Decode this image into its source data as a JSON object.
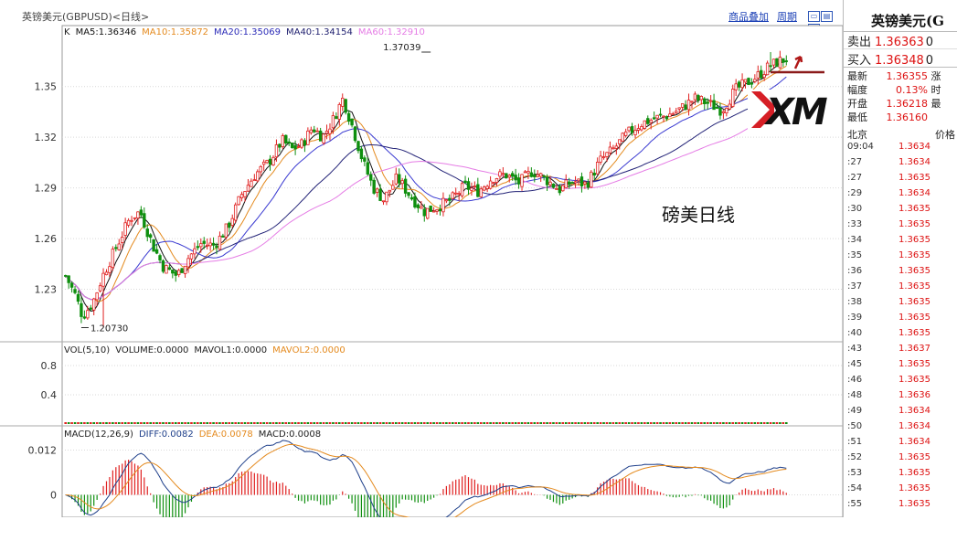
{
  "window": {
    "title": "英镑美元(GBPUSD)<日线>",
    "links": [
      "商品叠加",
      "周期"
    ]
  },
  "chart_data": [
    {
      "type": "candlestick",
      "title": "磅美日线",
      "ylim": [
        1.2,
        1.385
      ],
      "yticks": [
        1.23,
        1.26,
        1.29,
        1.32,
        1.35
      ],
      "indicator_line": {
        "prefix": "K",
        "items": [
          {
            "name": "MA5:1.36346",
            "color": "#111111"
          },
          {
            "name": "MA10:1.35872",
            "color": "#e48a1e"
          },
          {
            "name": "MA20:1.35069",
            "color": "#2c2cb8"
          },
          {
            "name": "MA40:1.34154",
            "color": "#1e1e6e"
          },
          {
            "name": "MA60:1.32910",
            "color": "#e57ce5"
          }
        ]
      },
      "annotations": [
        {
          "text": "1.37039",
          "x": 215,
          "y": 1.37039
        },
        {
          "text": "1.20730",
          "x": 10,
          "y": 1.2073
        }
      ],
      "anchors": [
        [
          0,
          1.238
        ],
        [
          6,
          1.226
        ],
        [
          10,
          1.214
        ],
        [
          16,
          1.222
        ],
        [
          22,
          1.238
        ],
        [
          30,
          1.255
        ],
        [
          38,
          1.272
        ],
        [
          44,
          1.276
        ],
        [
          52,
          1.255
        ],
        [
          58,
          1.243
        ],
        [
          66,
          1.238
        ],
        [
          72,
          1.248
        ],
        [
          80,
          1.257
        ],
        [
          88,
          1.256
        ],
        [
          96,
          1.267
        ],
        [
          104,
          1.286
        ],
        [
          112,
          1.298
        ],
        [
          120,
          1.305
        ],
        [
          128,
          1.318
        ],
        [
          134,
          1.313
        ],
        [
          140,
          1.316
        ],
        [
          146,
          1.326
        ],
        [
          152,
          1.32
        ],
        [
          158,
          1.33
        ],
        [
          164,
          1.343
        ],
        [
          170,
          1.325
        ],
        [
          176,
          1.305
        ],
        [
          182,
          1.29
        ],
        [
          188,
          1.283
        ],
        [
          196,
          1.296
        ],
        [
          204,
          1.285
        ],
        [
          212,
          1.276
        ],
        [
          220,
          1.279
        ],
        [
          228,
          1.283
        ],
        [
          236,
          1.291
        ],
        [
          244,
          1.288
        ],
        [
          252,
          1.296
        ],
        [
          260,
          1.298
        ],
        [
          268,
          1.293
        ],
        [
          276,
          1.3
        ],
        [
          284,
          1.295
        ],
        [
          292,
          1.289
        ],
        [
          300,
          1.294
        ],
        [
          308,
          1.292
        ],
        [
          316,
          1.306
        ],
        [
          324,
          1.313
        ],
        [
          332,
          1.322
        ],
        [
          340,
          1.328
        ],
        [
          348,
          1.331
        ],
        [
          356,
          1.333
        ],
        [
          364,
          1.337
        ],
        [
          372,
          1.343
        ],
        [
          380,
          1.34
        ],
        [
          388,
          1.336
        ],
        [
          396,
          1.348
        ],
        [
          404,
          1.353
        ],
        [
          410,
          1.357
        ],
        [
          416,
          1.362
        ],
        [
          422,
          1.365
        ],
        [
          428,
          1.367
        ]
      ],
      "ma": [
        {
          "name": "MA5",
          "color": "#111111",
          "period": 5
        },
        {
          "name": "MA10",
          "color": "#e48a1e",
          "period": 10
        },
        {
          "name": "MA20",
          "color": "#3b3bd1",
          "period": 20
        },
        {
          "name": "MA40",
          "color": "#232377",
          "period": 40
        },
        {
          "name": "MA60",
          "color": "#e57ce5",
          "period": 60
        }
      ]
    },
    {
      "type": "bar",
      "title": "VOL(5,10)",
      "ylim": [
        0,
        1.1
      ],
      "yticks": [
        0.4,
        0.8
      ],
      "indicator_line": {
        "prefix": "VOL(5,10)",
        "items": [
          {
            "name": "VOLUME:0.0000",
            "color": "#222222"
          },
          {
            "name": "MAVOL1:0.0000",
            "color": "#222222"
          },
          {
            "name": "MAVOL2:0.0000",
            "color": "#e48a1e"
          }
        ]
      },
      "values_note": "all volumes 0.0000"
    },
    {
      "type": "macd",
      "ylim": [
        -0.006,
        0.018
      ],
      "yticks": [
        0,
        0.012
      ],
      "indicator_line": {
        "prefix": "MACD(12,26,9)",
        "items": [
          {
            "name": "DIFF:0.0082",
            "color": "#1e3f8a"
          },
          {
            "name": "DEA:0.0078",
            "color": "#e48a1e"
          },
          {
            "name": "MACD:0.0008",
            "color": "#222222"
          }
        ]
      }
    }
  ],
  "quote_panel": {
    "title": "英镑美元(G",
    "sell": {
      "label": "卖出",
      "value": "1.36363",
      "tail": "0"
    },
    "buy": {
      "label": "买入",
      "value": "1.36348",
      "tail": "0"
    },
    "stats": [
      {
        "label": "最新",
        "value": "1.36355",
        "tail": "涨"
      },
      {
        "label": "幅度",
        "value": "0.13%",
        "tail": "时"
      },
      {
        "label": "开盘",
        "value": "1.36218",
        "tail": "最"
      },
      {
        "label": "最低",
        "value": "1.36160",
        "tail": ""
      }
    ],
    "ticks_header": {
      "left": "北京",
      "right": "价格"
    },
    "ticks": [
      {
        "t": "09:04",
        "p": "1.3634"
      },
      {
        "t": ":27",
        "p": "1.3634"
      },
      {
        "t": ":27",
        "p": "1.3635"
      },
      {
        "t": ":29",
        "p": "1.3634"
      },
      {
        "t": ":30",
        "p": "1.3635"
      },
      {
        "t": ":33",
        "p": "1.3635"
      },
      {
        "t": ":34",
        "p": "1.3635"
      },
      {
        "t": ":35",
        "p": "1.3635"
      },
      {
        "t": ":36",
        "p": "1.3635"
      },
      {
        "t": ":37",
        "p": "1.3635"
      },
      {
        "t": ":38",
        "p": "1.3635"
      },
      {
        "t": ":39",
        "p": "1.3635"
      },
      {
        "t": ":40",
        "p": "1.3635"
      },
      {
        "t": ":43",
        "p": "1.3637"
      },
      {
        "t": ":45",
        "p": "1.3635"
      },
      {
        "t": ":46",
        "p": "1.3635"
      },
      {
        "t": ":48",
        "p": "1.3636"
      },
      {
        "t": ":49",
        "p": "1.3634"
      },
      {
        "t": ":50",
        "p": "1.3634"
      },
      {
        "t": ":51",
        "p": "1.3634"
      },
      {
        "t": ":52",
        "p": "1.3635"
      },
      {
        "t": ":53",
        "p": "1.3635"
      },
      {
        "t": ":54",
        "p": "1.3635"
      },
      {
        "t": ":55",
        "p": "1.3635"
      }
    ]
  },
  "logo": {
    "text": "XM"
  },
  "colors": {
    "up": "#e02020",
    "down": "#0f8f0f",
    "grid": "#d9d9d9",
    "link": "#1a3fb5"
  }
}
